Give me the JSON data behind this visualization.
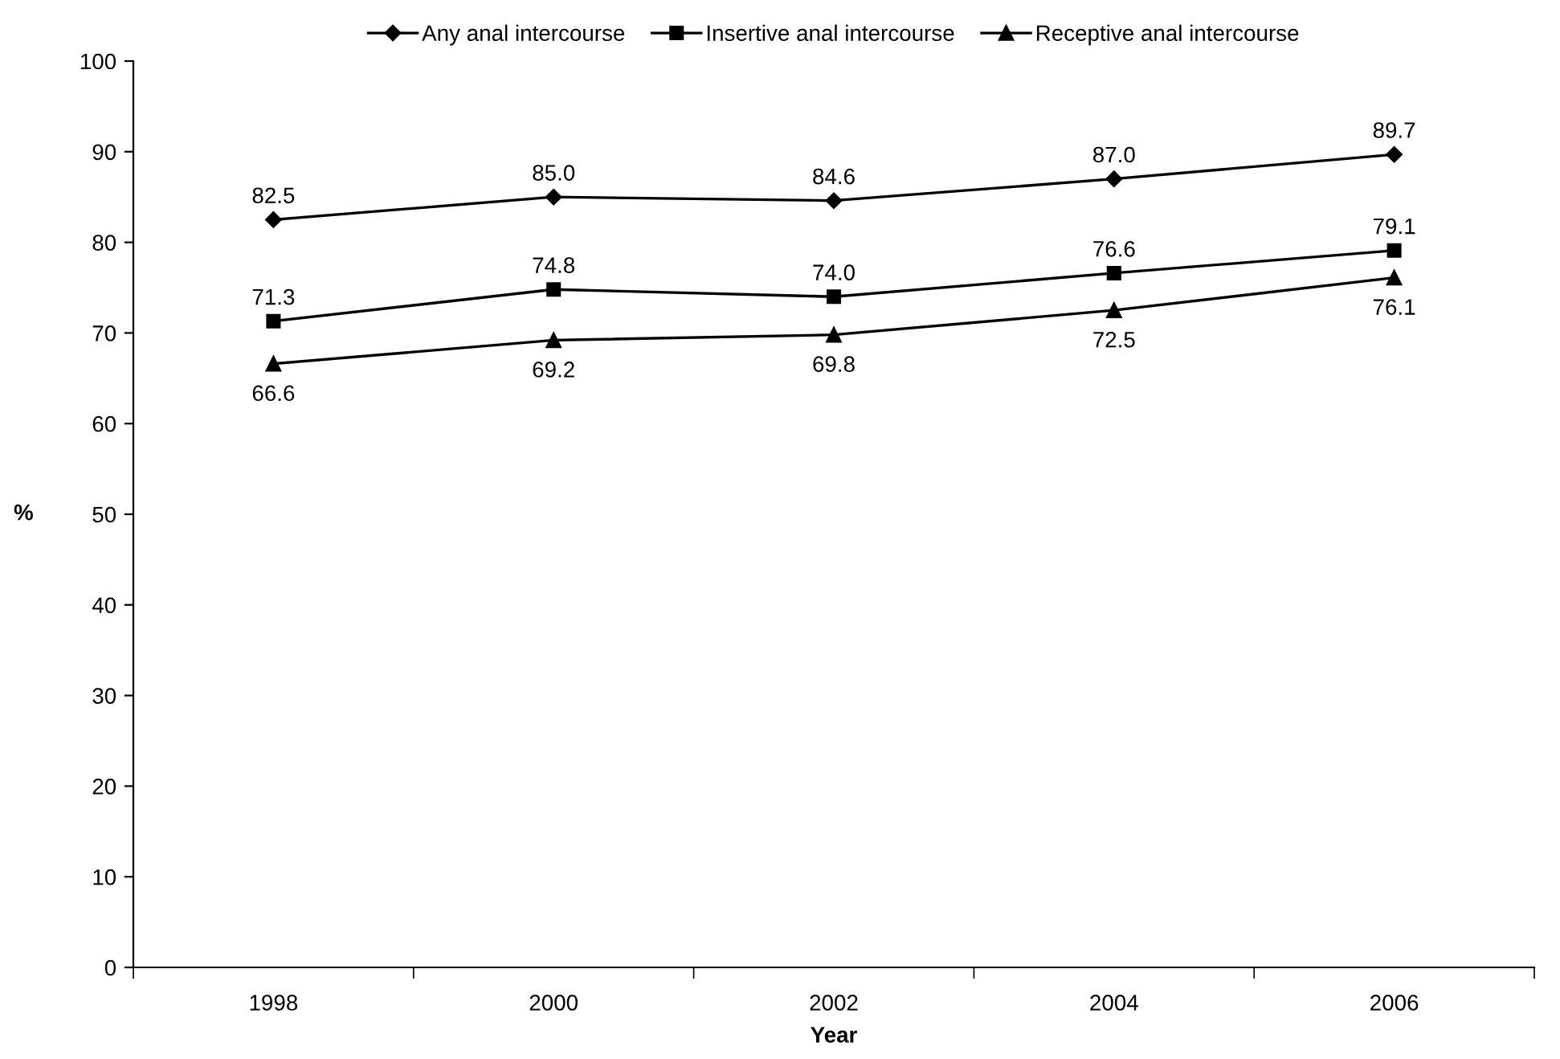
{
  "chart_data": {
    "type": "line",
    "xlabel": "Year",
    "ylabel": "%",
    "categories": [
      "1998",
      "2000",
      "2002",
      "2004",
      "2006"
    ],
    "series": [
      {
        "name": "Any anal intercourse",
        "color": "#000000",
        "marker": "diamond",
        "values": [
          82.5,
          85.0,
          84.6,
          87.0,
          89.7
        ],
        "value_labels": [
          "82.5",
          "85.0",
          "84.6",
          "87.0",
          "89.7"
        ]
      },
      {
        "name": "Insertive anal intercourse",
        "color": "#000000",
        "marker": "square",
        "values": [
          71.3,
          74.8,
          74.0,
          76.6,
          79.1
        ],
        "value_labels": [
          "71.3",
          "74.8",
          "74.0",
          "76.6",
          "79.1"
        ]
      },
      {
        "name": "Receptive anal intercourse",
        "color": "#000000",
        "marker": "triangle",
        "values": [
          66.6,
          69.2,
          69.8,
          72.5,
          76.1
        ],
        "value_labels": [
          "66.6",
          "69.2",
          "69.8",
          "72.5",
          "76.1"
        ]
      }
    ],
    "ylim": [
      0,
      100
    ],
    "yticks": [
      0,
      10,
      20,
      30,
      40,
      50,
      60,
      70,
      80,
      90,
      100
    ],
    "legend": "top",
    "grid": false,
    "line_style": "solid"
  }
}
